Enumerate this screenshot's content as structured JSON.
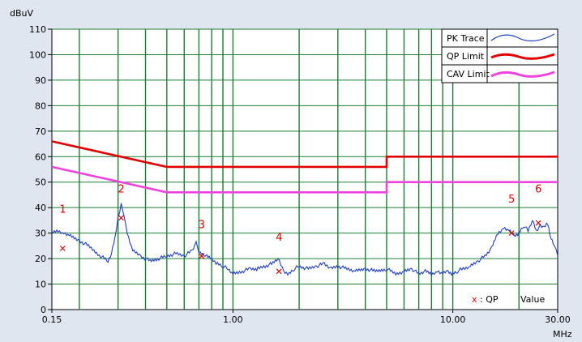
{
  "chart_data": {
    "type": "line",
    "ylabel": "dBuV",
    "xlabel": "MHz",
    "x_scale": "log",
    "xlim": [
      0.15,
      30
    ],
    "ylim": [
      0,
      110
    ],
    "x_tick_labels": [
      {
        "v": 0.15,
        "label": "0.15"
      },
      {
        "v": 1,
        "label": "1.00"
      },
      {
        "v": 10,
        "label": "10.00"
      },
      {
        "v": 30,
        "label": "30.00"
      }
    ],
    "y_ticks": [
      0,
      10,
      20,
      30,
      40,
      50,
      60,
      70,
      80,
      90,
      100,
      110
    ],
    "grid": true,
    "legend_position": "top-right",
    "colors": {
      "plot_bg": "#ffffff",
      "grid": "#1e7d32",
      "pk": "#1f3fbf",
      "qp": "#e00000",
      "cav": "#ee44dd",
      "marker": "#e00000"
    },
    "series": [
      {
        "name": "PK Trace",
        "x": [
          0.15,
          0.16,
          0.17,
          0.18,
          0.2,
          0.22,
          0.25,
          0.27,
          0.28,
          0.29,
          0.3,
          0.31,
          0.32,
          0.33,
          0.35,
          0.38,
          0.42,
          0.46,
          0.5,
          0.55,
          0.6,
          0.65,
          0.68,
          0.7,
          0.72,
          0.75,
          0.8,
          0.85,
          0.9,
          0.95,
          1.0,
          1.1,
          1.2,
          1.3,
          1.4,
          1.5,
          1.6,
          1.7,
          1.8,
          1.9,
          2.0,
          2.2,
          2.4,
          2.6,
          2.8,
          3.0,
          3.3,
          3.6,
          4.0,
          4.5,
          5.0,
          5.5,
          6.0,
          6.5,
          7.0,
          7.5,
          8.0,
          8.5,
          9.0,
          9.5,
          10.0,
          10.5,
          11.0,
          12.0,
          13.0,
          14.0,
          15.0,
          16.0,
          17.0,
          18.0,
          19.0,
          20.0,
          21.0,
          22.0,
          23.0,
          24.0,
          25.0,
          26.0,
          27.0,
          28.0,
          29.0,
          30.0
        ],
        "y": [
          30,
          31,
          30,
          29,
          27,
          25,
          21,
          19,
          22,
          28,
          36,
          41,
          37,
          30,
          23,
          21,
          19,
          20,
          21,
          22,
          21,
          23,
          26,
          23,
          22,
          21,
          20,
          18,
          17,
          16,
          14,
          15,
          16,
          16,
          17,
          18,
          20,
          15,
          14,
          16,
          17,
          16,
          17,
          18,
          16,
          17,
          16,
          15,
          16,
          15,
          16,
          14,
          15,
          16,
          14,
          15,
          14,
          15,
          14,
          15,
          14,
          15,
          16,
          17,
          19,
          21,
          24,
          30,
          32,
          31,
          29,
          30,
          33,
          31,
          35,
          31,
          33,
          32,
          34,
          28,
          25,
          21
        ]
      },
      {
        "name": "QP Limit",
        "x": [
          0.15,
          0.5,
          5,
          5,
          30
        ],
        "y": [
          66,
          56,
          56,
          60,
          60
        ]
      },
      {
        "name": "CAV Limit",
        "x": [
          0.15,
          0.5,
          5,
          5,
          30
        ],
        "y": [
          56,
          46,
          46,
          50,
          50
        ]
      }
    ],
    "markers": [
      {
        "label": "1",
        "x": 0.168,
        "y": 24,
        "label_y": 38
      },
      {
        "label": "2",
        "x": 0.31,
        "y": 36,
        "label_y": 46
      },
      {
        "label": "3",
        "x": 0.72,
        "y": 21,
        "label_y": 32
      },
      {
        "label": "4",
        "x": 1.62,
        "y": 15,
        "label_y": 27
      },
      {
        "label": "5",
        "x": 18.5,
        "y": 30,
        "label_y": 42
      },
      {
        "label": "6",
        "x": 24.5,
        "y": 34,
        "label_y": 46
      }
    ],
    "note": {
      "symbol": "x",
      "text": ": QP",
      "value_label": "Value"
    }
  }
}
